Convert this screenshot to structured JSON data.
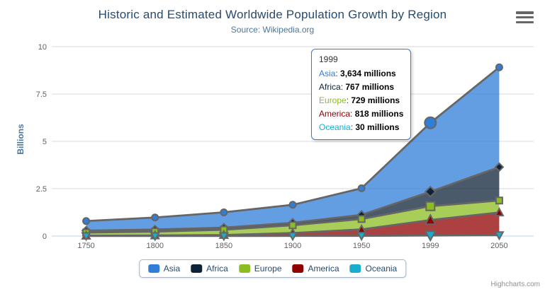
{
  "credits": "Highcharts.com",
  "colors": {
    "title": "#274b6d",
    "subtitle": "#4d759e",
    "axis_title": "#4d759e",
    "axis_labels": "#606060",
    "grid_line": "#d8d8d8",
    "x_axis_line": "#c0d0e0",
    "series_outline": "#666666",
    "legend_border": "#a8b6c7",
    "legend_text": "#274b6d",
    "tooltip_border": "#2f7ed8",
    "credits_text": "#909090",
    "menu_icon": "#666666"
  },
  "chart_data": {
    "type": "area",
    "stacking": "normal",
    "title": "Historic and Estimated Worldwide Population Growth by Region",
    "subtitle": "Source: Wikipedia.org",
    "categories": [
      "1750",
      "1800",
      "1850",
      "1900",
      "1950",
      "1999",
      "2050"
    ],
    "xlabel": "",
    "ylabel": "Billions",
    "yticks": [
      "0",
      "2.5",
      "5",
      "7.5",
      "10"
    ],
    "ylim": [
      0,
      10
    ],
    "values_unit": "millions",
    "grid": true,
    "legend_position": "bottom",
    "hover_index": 5,
    "fill_opacity": 0.75,
    "series": [
      {
        "name": "Asia",
        "color": "#2f7ed8",
        "marker": "circle",
        "values": [
          502,
          635,
          809,
          947,
          1402,
          3634,
          5268
        ]
      },
      {
        "name": "Africa",
        "color": "#0d233a",
        "marker": "diamond",
        "values": [
          106,
          107,
          111,
          133,
          221,
          767,
          1766
        ]
      },
      {
        "name": "Europe",
        "color": "#8bbc21",
        "marker": "square",
        "values": [
          163,
          203,
          276,
          408,
          547,
          729,
          628
        ]
      },
      {
        "name": "America",
        "color": "#910000",
        "marker": "triangle",
        "values": [
          18,
          31,
          54,
          156,
          339,
          818,
          1201
        ]
      },
      {
        "name": "Oceania",
        "color": "#1aadce",
        "marker": "triangle-down",
        "values": [
          2,
          2,
          2,
          6,
          13,
          30,
          46
        ]
      }
    ]
  },
  "tooltip": {
    "header": "1999",
    "rows": [
      {
        "name": "Asia",
        "color": "#2f7ed8",
        "value": "3,634",
        "unit": "millions"
      },
      {
        "name": "Africa",
        "color": "#0d233a",
        "value": "767",
        "unit": "millions"
      },
      {
        "name": "Europe",
        "color": "#8bbc21",
        "value": "729",
        "unit": "millions"
      },
      {
        "name": "America",
        "color": "#910000",
        "value": "818",
        "unit": "millions"
      },
      {
        "name": "Oceania",
        "color": "#1aadce",
        "value": "30",
        "unit": "millions"
      }
    ]
  }
}
